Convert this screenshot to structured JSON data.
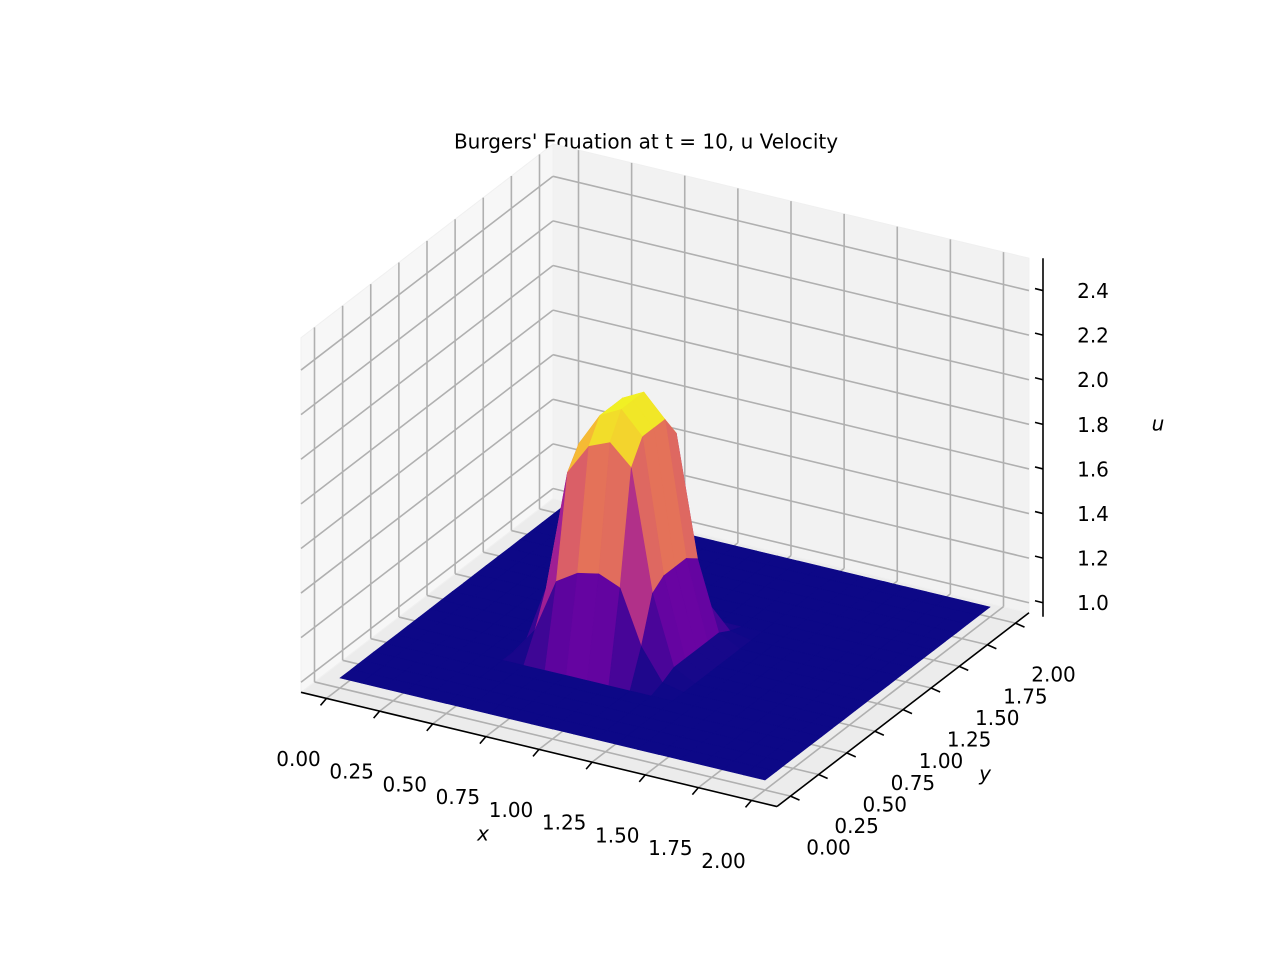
{
  "chart_data": {
    "type": "surface",
    "title": "Burgers' Equation at t = 10, u Velocity",
    "x_label": "x",
    "y_label": "y",
    "z_label": "u",
    "colormap": "plasma",
    "xlim": [
      0,
      2
    ],
    "ylim": [
      0,
      2
    ],
    "zlim": [
      1,
      2.5
    ],
    "xticks": [
      {
        "value": 0,
        "label": "0.00"
      },
      {
        "value": 0.25,
        "label": "0.25"
      },
      {
        "value": 0.5,
        "label": "0.50"
      },
      {
        "value": 0.75,
        "label": "0.75"
      },
      {
        "value": 1,
        "label": "1.00"
      },
      {
        "value": 1.25,
        "label": "1.25"
      },
      {
        "value": 1.5,
        "label": "1.50"
      },
      {
        "value": 1.75,
        "label": "1.75"
      },
      {
        "value": 2,
        "label": "2.00"
      }
    ],
    "yticks": [
      {
        "value": 0,
        "label": "0.00"
      },
      {
        "value": 0.25,
        "label": "0.25"
      },
      {
        "value": 0.5,
        "label": "0.50"
      },
      {
        "value": 0.75,
        "label": "0.75"
      },
      {
        "value": 1,
        "label": "1.00"
      },
      {
        "value": 1.25,
        "label": "1.25"
      },
      {
        "value": 1.5,
        "label": "1.50"
      },
      {
        "value": 1.75,
        "label": "1.75"
      },
      {
        "value": 2,
        "label": "2.00"
      }
    ],
    "zticks": [
      {
        "value": 1,
        "label": "1.0"
      },
      1.2,
      1.4,
      1.6,
      1.8,
      {
        "value": 2,
        "label": "2.0"
      },
      2.2,
      2.4
    ],
    "x": [
      0,
      0.1,
      0.2,
      0.3,
      0.4,
      0.5,
      0.6,
      0.7,
      0.8,
      0.9,
      1,
      1.1,
      1.2,
      1.3,
      1.4,
      1.5,
      1.6,
      1.7,
      1.8,
      1.9,
      2
    ],
    "y": [
      0,
      0.1,
      0.2,
      0.3,
      0.4,
      0.5,
      0.6,
      0.7,
      0.8,
      0.9,
      1,
      1.1,
      1.2,
      1.3,
      1.4,
      1.5,
      1.6,
      1.7,
      1.8,
      1.9,
      2
    ],
    "z": [
      [
        1,
        1,
        1,
        1,
        1,
        1,
        1,
        1,
        1,
        1,
        1,
        1,
        1,
        1,
        1,
        1,
        1,
        1,
        1,
        1,
        1
      ],
      [
        1,
        1,
        1,
        1,
        1,
        1,
        1,
        1,
        1,
        1,
        1,
        1,
        1,
        1,
        1,
        1,
        1,
        1,
        1,
        1,
        1
      ],
      [
        1,
        1,
        1,
        1,
        1,
        1,
        1,
        1,
        1,
        1,
        1,
        1,
        1,
        1,
        1,
        1,
        1,
        1,
        1,
        1,
        1
      ],
      [
        1,
        1,
        1,
        1,
        1,
        1,
        1,
        1,
        1,
        1,
        1,
        1,
        1,
        1,
        1,
        1,
        1,
        1,
        1,
        1,
        1
      ],
      [
        1,
        1,
        1,
        1,
        1,
        1,
        1,
        1,
        1,
        1,
        1,
        1,
        1,
        1,
        1,
        1,
        1,
        1,
        1,
        1,
        1
      ],
      [
        1,
        1,
        1,
        1,
        1,
        1,
        1,
        1,
        1,
        1,
        1,
        1,
        1,
        1,
        1,
        1,
        1,
        1,
        1,
        1,
        1
      ],
      [
        1,
        1,
        1,
        1,
        1,
        1,
        1.12,
        1.36,
        1.42,
        1.44,
        1.4,
        1.16,
        1.02,
        1,
        1,
        1,
        1,
        1,
        1,
        1,
        1
      ],
      [
        1,
        1,
        1,
        1,
        1,
        1,
        1.27,
        1.81,
        1.95,
        1.99,
        1.9,
        1.36,
        1.05,
        1,
        1,
        1,
        1,
        1,
        1,
        1,
        1
      ],
      [
        1,
        1,
        1,
        1,
        1,
        1,
        1.3,
        1.9,
        2.05,
        2.1,
        2,
        1.4,
        1.05,
        1,
        1,
        1,
        1,
        1,
        1,
        1,
        1
      ],
      [
        1,
        1,
        1,
        1,
        1,
        1,
        1.3,
        1.9,
        2.05,
        2.1,
        2,
        1.4,
        1.05,
        1,
        1,
        1,
        1,
        1,
        1,
        1,
        1
      ],
      [
        1,
        1,
        1,
        1,
        1,
        1,
        1.3,
        1.9,
        2.05,
        2.1,
        2,
        1.4,
        1.05,
        1,
        1,
        1,
        1,
        1,
        1,
        1,
        1
      ],
      [
        1,
        1,
        1,
        1,
        1,
        1,
        1.27,
        1.81,
        1.95,
        1.99,
        1.9,
        1.36,
        1.05,
        1,
        1,
        1,
        1,
        1,
        1,
        1,
        1
      ],
      [
        1,
        1,
        1,
        1,
        1,
        1,
        1.09,
        1.27,
        1.32,
        1.33,
        1.3,
        1.12,
        1.02,
        1,
        1,
        1,
        1,
        1,
        1,
        1,
        1
      ],
      [
        1,
        1,
        1,
        1,
        1,
        1,
        1,
        1,
        1,
        1,
        1,
        1,
        1,
        1,
        1,
        1,
        1,
        1,
        1,
        1,
        1
      ],
      [
        1,
        1,
        1,
        1,
        1,
        1,
        1,
        1,
        1,
        1,
        1,
        1,
        1,
        1,
        1,
        1,
        1,
        1,
        1,
        1,
        1
      ],
      [
        1,
        1,
        1,
        1,
        1,
        1,
        1,
        1,
        1,
        1,
        1,
        1,
        1,
        1,
        1,
        1,
        1,
        1,
        1,
        1,
        1
      ],
      [
        1,
        1,
        1,
        1,
        1,
        1,
        1,
        1,
        1,
        1,
        1,
        1,
        1,
        1,
        1,
        1,
        1,
        1,
        1,
        1,
        1
      ],
      [
        1,
        1,
        1,
        1,
        1,
        1,
        1,
        1,
        1,
        1,
        1,
        1,
        1,
        1,
        1,
        1,
        1,
        1,
        1,
        1,
        1
      ],
      [
        1,
        1,
        1,
        1,
        1,
        1,
        1,
        1,
        1,
        1,
        1,
        1,
        1,
        1,
        1,
        1,
        1,
        1,
        1,
        1,
        1
      ],
      [
        1,
        1,
        1,
        1,
        1,
        1,
        1,
        1,
        1,
        1,
        1,
        1,
        1,
        1,
        1,
        1,
        1,
        1,
        1,
        1,
        1
      ],
      [
        1,
        1,
        1,
        1,
        1,
        1,
        1,
        1,
        1,
        1,
        1,
        1,
        1,
        1,
        1,
        1,
        1,
        1,
        1,
        1,
        1
      ]
    ]
  }
}
